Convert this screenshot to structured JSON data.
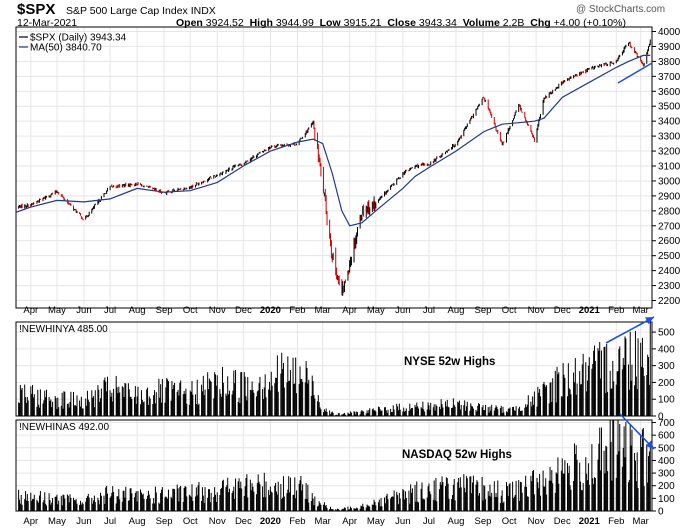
{
  "header": {
    "symbol": "$SPX",
    "name": "S&P 500 Large Cap Index INDX",
    "date": "12-Mar-2021",
    "source": "@ StockCharts.com",
    "open_label": "Open",
    "open": "3924.52",
    "high_label": "High",
    "high": "3944.99",
    "low_label": "Low",
    "low": "3915.21",
    "close_label": "Close",
    "close": "3943.34",
    "volume_label": "Volume",
    "volume": "2.2B",
    "chg_label": "Chg",
    "chg": "+4.00 (+0.10%)"
  },
  "colors": {
    "up": "#000000",
    "down": "#cc0000",
    "ma": "#1f3a8f",
    "hist": "#000000",
    "arrow": "#1f4fe0",
    "grid": "#e6e6e6"
  },
  "chart_data": [
    {
      "type": "line",
      "title": "$SPX (Daily) 3943.34",
      "legend": [
        {
          "label": "$SPX (Daily) 3943.34"
        },
        {
          "label": "MA(50) 3840.70"
        }
      ],
      "legend_position": "top-left",
      "ylim": [
        2150,
        4030
      ],
      "yticks": [
        2200,
        2300,
        2400,
        2500,
        2600,
        2700,
        2800,
        2900,
        3000,
        3100,
        3200,
        3300,
        3400,
        3500,
        3600,
        3700,
        3800,
        3900,
        4000
      ],
      "grid": true,
      "x": [
        "2019-03-15",
        "2019-04-01",
        "2019-05-01",
        "2019-06-01",
        "2019-07-01",
        "2019-08-01",
        "2019-09-01",
        "2019-10-01",
        "2019-11-01",
        "2019-12-01",
        "2020-01-01",
        "2020-02-01",
        "2020-02-19",
        "2020-03-01",
        "2020-03-12",
        "2020-03-23",
        "2020-04-01",
        "2020-04-15",
        "2020-05-01",
        "2020-06-01",
        "2020-06-15",
        "2020-07-01",
        "2020-08-01",
        "2020-09-02",
        "2020-09-23",
        "2020-10-12",
        "2020-10-30",
        "2020-11-10",
        "2020-12-01",
        "2021-01-01",
        "2021-02-01",
        "2021-02-15",
        "2021-03-04",
        "2021-03-12"
      ],
      "series": [
        {
          "name": "$SPX (Daily)",
          "values": [
            2825,
            2840,
            2930,
            2740,
            2960,
            2980,
            2920,
            2960,
            3040,
            3120,
            3230,
            3250,
            3390,
            2980,
            2500,
            2240,
            2450,
            2800,
            2850,
            3050,
            3100,
            3110,
            3250,
            3560,
            3240,
            3510,
            3270,
            3550,
            3660,
            3750,
            3800,
            3930,
            3770,
            3943
          ]
        },
        {
          "name": "MA(50)",
          "values": [
            2790,
            2825,
            2870,
            2860,
            2880,
            2950,
            2925,
            2935,
            2990,
            3100,
            3200,
            3260,
            3280,
            3250,
            3050,
            2800,
            2700,
            2720,
            2800,
            2950,
            3030,
            3090,
            3200,
            3330,
            3380,
            3390,
            3400,
            3420,
            3560,
            3660,
            3760,
            3800,
            3840,
            3840
          ]
        }
      ]
    },
    {
      "type": "bar",
      "title": "!NEWHINYA 485.00",
      "annotation": "NYSE 52w Highs",
      "ylim": [
        0,
        560
      ],
      "yticks": [
        0,
        100,
        200,
        300,
        400,
        500
      ],
      "x": [
        "2019-03-15",
        "2019-05-01",
        "2019-06-01",
        "2019-07-01",
        "2019-08-01",
        "2019-09-01",
        "2019-10-01",
        "2019-11-01",
        "2019-12-01",
        "2020-01-01",
        "2020-01-20",
        "2020-02-15",
        "2020-03-01",
        "2020-03-15",
        "2020-04-01",
        "2020-05-01",
        "2020-06-01",
        "2020-07-01",
        "2020-08-01",
        "2020-09-01",
        "2020-10-01",
        "2020-11-01",
        "2020-12-01",
        "2021-01-01",
        "2021-02-01",
        "2021-02-20",
        "2021-03-12"
      ],
      "values": [
        150,
        120,
        100,
        190,
        140,
        170,
        150,
        230,
        210,
        270,
        300,
        250,
        60,
        10,
        20,
        40,
        60,
        70,
        80,
        60,
        40,
        120,
        260,
        300,
        380,
        420,
        485
      ]
    },
    {
      "type": "bar",
      "title": "!NEWHINAS 492.00",
      "annotation": "NASDAQ 52w Highs",
      "ylim": [
        0,
        720
      ],
      "yticks": [
        0,
        100,
        200,
        300,
        400,
        500,
        600,
        700
      ],
      "x": [
        "2019-03-15",
        "2019-05-01",
        "2019-06-01",
        "2019-07-01",
        "2019-08-01",
        "2019-09-01",
        "2019-10-01",
        "2019-11-01",
        "2019-12-01",
        "2020-01-01",
        "2020-02-01",
        "2020-03-01",
        "2020-03-15",
        "2020-04-01",
        "2020-05-01",
        "2020-06-01",
        "2020-07-01",
        "2020-08-01",
        "2020-09-01",
        "2020-10-01",
        "2020-11-01",
        "2020-12-01",
        "2021-01-01",
        "2021-02-01",
        "2021-02-20",
        "2021-03-12"
      ],
      "values": [
        140,
        110,
        90,
        160,
        130,
        150,
        160,
        200,
        220,
        240,
        230,
        60,
        10,
        30,
        80,
        150,
        200,
        230,
        200,
        170,
        260,
        380,
        420,
        600,
        500,
        492
      ]
    }
  ],
  "x_axis_labels": [
    "Apr",
    "May",
    "Jun",
    "Jul",
    "Aug",
    "Sep",
    "Oct",
    "Nov",
    "Dec",
    "2020",
    "Feb",
    "Mar",
    "Apr",
    "May",
    "Jun",
    "Jul",
    "Aug",
    "Sep",
    "Oct",
    "Nov",
    "Dec",
    "2021",
    "Feb",
    "Mar"
  ],
  "x_axis_dates": [
    "2019-04-01",
    "2019-05-01",
    "2019-06-01",
    "2019-07-01",
    "2019-08-01",
    "2019-09-01",
    "2019-10-01",
    "2019-11-01",
    "2019-12-01",
    "2020-01-01",
    "2020-02-01",
    "2020-03-01",
    "2020-04-01",
    "2020-05-01",
    "2020-06-01",
    "2020-07-01",
    "2020-08-01",
    "2020-09-01",
    "2020-10-01",
    "2020-11-01",
    "2020-12-01",
    "2021-01-01",
    "2021-02-01",
    "2021-03-01"
  ]
}
